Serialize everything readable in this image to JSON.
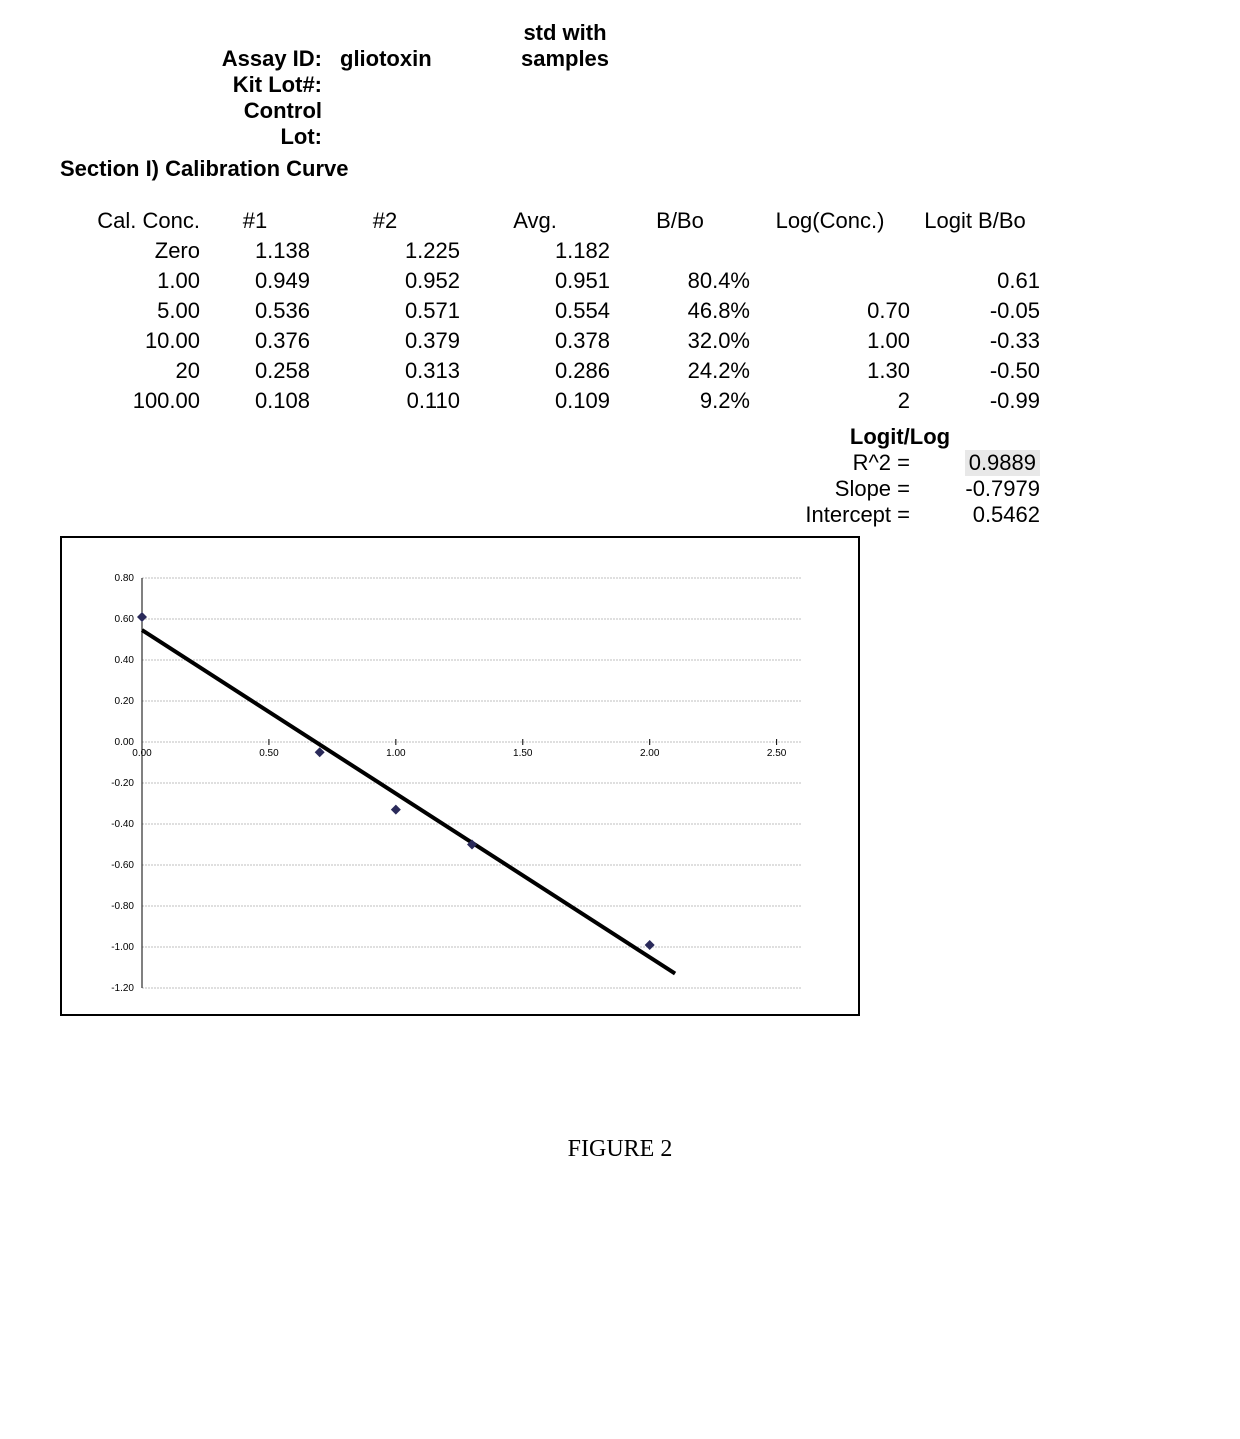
{
  "header": {
    "assay_id_label": "Assay ID:",
    "assay_id_value": "gliotoxin",
    "std_with": "std with",
    "samples": "samples",
    "kit_lot_label": "Kit Lot#:",
    "control_label": "Control",
    "lot_label": "Lot:"
  },
  "section_title": "Section I) Calibration Curve",
  "table": {
    "headers": {
      "conc": "Cal. Conc.",
      "n1": "#1",
      "n2": "#2",
      "avg": "Avg.",
      "bbo": "B/Bo",
      "logc": "Log(Conc.)",
      "logit": "Logit B/Bo"
    },
    "rows": [
      {
        "conc": "Zero",
        "n1": "1.138",
        "n2": "1.225",
        "avg": "1.182",
        "bbo": "",
        "logc": "",
        "logit": ""
      },
      {
        "conc": "1.00",
        "n1": "0.949",
        "n2": "0.952",
        "avg": "0.951",
        "bbo": "80.4%",
        "logc": "",
        "logit": "0.61"
      },
      {
        "conc": "5.00",
        "n1": "0.536",
        "n2": "0.571",
        "avg": "0.554",
        "bbo": "46.8%",
        "logc": "0.70",
        "logit": "-0.05"
      },
      {
        "conc": "10.00",
        "n1": "0.376",
        "n2": "0.379",
        "avg": "0.378",
        "bbo": "32.0%",
        "logc": "1.00",
        "logit": "-0.33"
      },
      {
        "conc": "20",
        "n1": "0.258",
        "n2": "0.313",
        "avg": "0.286",
        "bbo": "24.2%",
        "logc": "1.30",
        "logit": "-0.50"
      },
      {
        "conc": "100.00",
        "n1": "0.108",
        "n2": "0.110",
        "avg": "0.109",
        "bbo": "9.2%",
        "logc": "2",
        "logit": "-0.99"
      }
    ]
  },
  "stats": {
    "title": "Logit/Log",
    "r2_label": "R^2 =",
    "r2_value": "0.9889",
    "slope_label": "Slope =",
    "slope_value": "-0.7979",
    "intercept_label": "Intercept =",
    "intercept_value": "0.5462"
  },
  "chart": {
    "type": "scatter-with-line",
    "xlim": [
      0.0,
      2.6
    ],
    "ylim": [
      -1.2,
      0.8
    ],
    "x_ticks": [
      0.0,
      0.5,
      1.0,
      1.5,
      2.0,
      2.5
    ],
    "y_ticks": [
      -1.2,
      -1.0,
      -0.8,
      -0.6,
      -0.4,
      -0.2,
      0.0,
      0.2,
      0.4,
      0.6,
      0.8
    ],
    "x_tick_labels": [
      "0.00",
      "0.50",
      "1.00",
      "1.50",
      "2.00",
      "2.50"
    ],
    "y_tick_labels": [
      "-1.20",
      "-1.00",
      "-0.80",
      "-0.60",
      "-0.40",
      "-0.20",
      "0.00",
      "0.20",
      "0.40",
      "0.60",
      "0.80"
    ],
    "grid_color": "#bfbfbf",
    "background_color": "#ffffff",
    "line_color": "#000000",
    "line_width": 4,
    "marker_color": "#2a2a5a",
    "marker_size": 10,
    "tick_fontsize": 10,
    "points": [
      {
        "x": 0.0,
        "y": 0.61
      },
      {
        "x": 0.7,
        "y": -0.05
      },
      {
        "x": 1.0,
        "y": -0.33
      },
      {
        "x": 1.3,
        "y": -0.5
      },
      {
        "x": 2.0,
        "y": -0.99
      }
    ],
    "regression": {
      "slope": -0.7979,
      "intercept": 0.5462,
      "x_from": 0.0,
      "x_to": 2.1
    }
  },
  "figure_caption": "FIGURE 2"
}
